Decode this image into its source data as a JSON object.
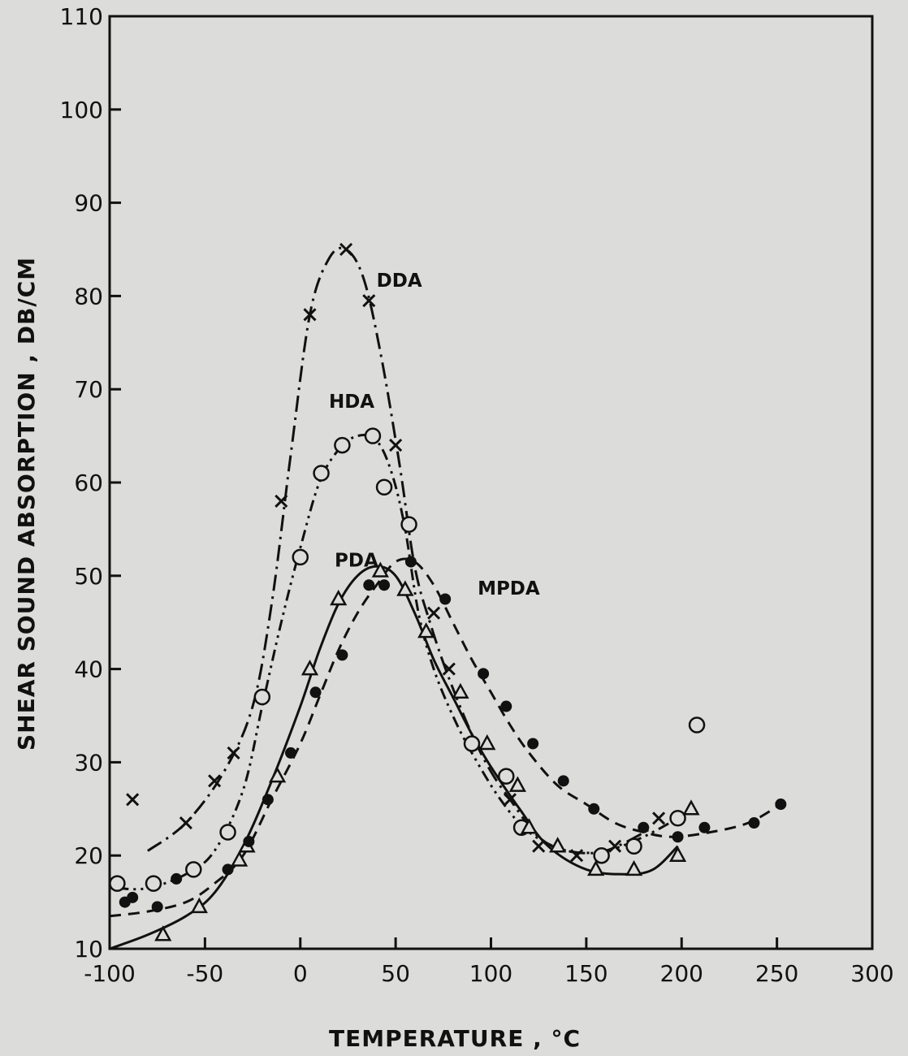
{
  "chart_data": {
    "type": "line",
    "title": "",
    "xlabel": "TEMPERATURE , °C",
    "ylabel": "SHEAR SOUND ABSORPTION , DB/CM",
    "xlim": [
      -100,
      300
    ],
    "ylim": [
      10,
      110
    ],
    "xticks": [
      -100,
      -50,
      0,
      50,
      100,
      150,
      200,
      250,
      300
    ],
    "yticks": [
      10,
      20,
      30,
      40,
      50,
      60,
      70,
      80,
      90,
      100,
      110
    ],
    "grid": false,
    "legend": "none",
    "series": [
      {
        "name": "DDA",
        "marker": "x",
        "line_style": "dash-dot",
        "color": "#111111",
        "label_at": [
          40,
          81
        ],
        "points": [
          [
            -88,
            26
          ],
          [
            -60,
            23.5
          ],
          [
            -35,
            31
          ],
          [
            -45,
            28
          ],
          [
            -10,
            58
          ],
          [
            5,
            78
          ],
          [
            24,
            85
          ],
          [
            36,
            79.5
          ],
          [
            50,
            64
          ],
          [
            70,
            46
          ],
          [
            78,
            40
          ],
          [
            110,
            26
          ],
          [
            125,
            21
          ],
          [
            145,
            20
          ],
          [
            165,
            21
          ],
          [
            188,
            24
          ]
        ],
        "curve": [
          [
            -80,
            20.5
          ],
          [
            -60,
            23.5
          ],
          [
            -40,
            29
          ],
          [
            -25,
            36
          ],
          [
            -15,
            47
          ],
          [
            -5,
            63
          ],
          [
            5,
            78
          ],
          [
            15,
            84
          ],
          [
            24,
            85
          ],
          [
            33,
            82
          ],
          [
            42,
            74
          ],
          [
            52,
            62
          ],
          [
            60,
            51
          ],
          [
            68,
            45
          ],
          [
            78,
            39
          ],
          [
            90,
            33
          ],
          [
            100,
            29
          ],
          [
            110,
            26
          ],
          [
            125,
            22
          ],
          [
            140,
            20.5
          ],
          [
            160,
            20.5
          ],
          [
            185,
            23
          ]
        ]
      },
      {
        "name": "HDA",
        "marker": "open-circle",
        "line_style": "dash-dot-dot",
        "color": "#111111",
        "label_at": [
          15,
          68
        ],
        "points": [
          [
            -96,
            17
          ],
          [
            -77,
            17
          ],
          [
            -56,
            18.5
          ],
          [
            -38,
            22.5
          ],
          [
            -20,
            37
          ],
          [
            0,
            52
          ],
          [
            11,
            61
          ],
          [
            22,
            64
          ],
          [
            38,
            65
          ],
          [
            44,
            59.5
          ],
          [
            57,
            55.5
          ],
          [
            90,
            32
          ],
          [
            108,
            28.5
          ],
          [
            116,
            23
          ],
          [
            158,
            20
          ],
          [
            175,
            21
          ],
          [
            198,
            24
          ],
          [
            208,
            34
          ]
        ],
        "curve": [
          [
            -96,
            16.5
          ],
          [
            -80,
            16.5
          ],
          [
            -60,
            18
          ],
          [
            -45,
            20.5
          ],
          [
            -30,
            27
          ],
          [
            -20,
            36
          ],
          [
            -10,
            45
          ],
          [
            0,
            53
          ],
          [
            10,
            60
          ],
          [
            20,
            63.5
          ],
          [
            30,
            65
          ],
          [
            40,
            64.5
          ],
          [
            48,
            61
          ],
          [
            55,
            55
          ],
          [
            62,
            46
          ],
          [
            70,
            40
          ],
          [
            80,
            35
          ],
          [
            90,
            31
          ],
          [
            105,
            26
          ],
          [
            120,
            22.5
          ],
          [
            140,
            20.5
          ],
          [
            160,
            20.5
          ],
          [
            180,
            22
          ],
          [
            198,
            24
          ]
        ]
      },
      {
        "name": "PDA",
        "marker": "open-triangle",
        "line_style": "solid",
        "color": "#111111",
        "label_at": [
          18,
          51
        ],
        "points": [
          [
            -72,
            11.5
          ],
          [
            -53,
            14.5
          ],
          [
            -32,
            19.5
          ],
          [
            -28,
            21
          ],
          [
            -12,
            28.5
          ],
          [
            5,
            40
          ],
          [
            20,
            47.5
          ],
          [
            42,
            50.5
          ],
          [
            55,
            48.5
          ],
          [
            66,
            44
          ],
          [
            84,
            37.5
          ],
          [
            98,
            32
          ],
          [
            114,
            27.5
          ],
          [
            120,
            23
          ],
          [
            135,
            21
          ],
          [
            155,
            18.5
          ],
          [
            175,
            18.5
          ],
          [
            198,
            20
          ],
          [
            205,
            25
          ]
        ],
        "curve": [
          [
            -100,
            10
          ],
          [
            -80,
            11.5
          ],
          [
            -60,
            13.5
          ],
          [
            -45,
            16
          ],
          [
            -30,
            21
          ],
          [
            -15,
            28
          ],
          [
            0,
            36
          ],
          [
            10,
            42
          ],
          [
            20,
            47
          ],
          [
            30,
            50
          ],
          [
            40,
            51
          ],
          [
            50,
            50
          ],
          [
            60,
            46
          ],
          [
            70,
            41
          ],
          [
            80,
            37
          ],
          [
            90,
            33
          ],
          [
            100,
            29.5
          ],
          [
            115,
            25
          ],
          [
            130,
            21
          ],
          [
            150,
            18.5
          ],
          [
            170,
            18
          ],
          [
            185,
            18.5
          ],
          [
            198,
            21
          ]
        ]
      },
      {
        "name": "MPDA",
        "marker": "filled-circle",
        "line_style": "dashed",
        "color": "#111111",
        "label_at": [
          93,
          48
        ],
        "points": [
          [
            -92,
            15
          ],
          [
            -88,
            15.5
          ],
          [
            -75,
            14.5
          ],
          [
            -65,
            17.5
          ],
          [
            -38,
            18.5
          ],
          [
            -27,
            21.5
          ],
          [
            -17,
            26
          ],
          [
            -5,
            31
          ],
          [
            8,
            37.5
          ],
          [
            22,
            41.5
          ],
          [
            36,
            49
          ],
          [
            44,
            49
          ],
          [
            58,
            51.5
          ],
          [
            76,
            47.5
          ],
          [
            96,
            39.5
          ],
          [
            108,
            36
          ],
          [
            122,
            32
          ],
          [
            138,
            28
          ],
          [
            154,
            25
          ],
          [
            180,
            23
          ],
          [
            198,
            22
          ],
          [
            212,
            23
          ],
          [
            238,
            23.5
          ],
          [
            252,
            25.5
          ]
        ],
        "curve": [
          [
            -100,
            13.5
          ],
          [
            -80,
            14
          ],
          [
            -60,
            15
          ],
          [
            -45,
            17
          ],
          [
            -30,
            20
          ],
          [
            -15,
            26
          ],
          [
            0,
            32
          ],
          [
            10,
            37
          ],
          [
            20,
            42
          ],
          [
            30,
            46
          ],
          [
            40,
            49
          ],
          [
            50,
            51.5
          ],
          [
            60,
            51.5
          ],
          [
            70,
            49
          ],
          [
            80,
            45
          ],
          [
            90,
            41
          ],
          [
            100,
            37.5
          ],
          [
            110,
            34
          ],
          [
            120,
            31
          ],
          [
            135,
            27.5
          ],
          [
            150,
            25.5
          ],
          [
            165,
            23.5
          ],
          [
            180,
            22.5
          ],
          [
            195,
            22
          ],
          [
            215,
            22.5
          ],
          [
            235,
            23.5
          ],
          [
            252,
            25.5
          ]
        ]
      }
    ]
  }
}
